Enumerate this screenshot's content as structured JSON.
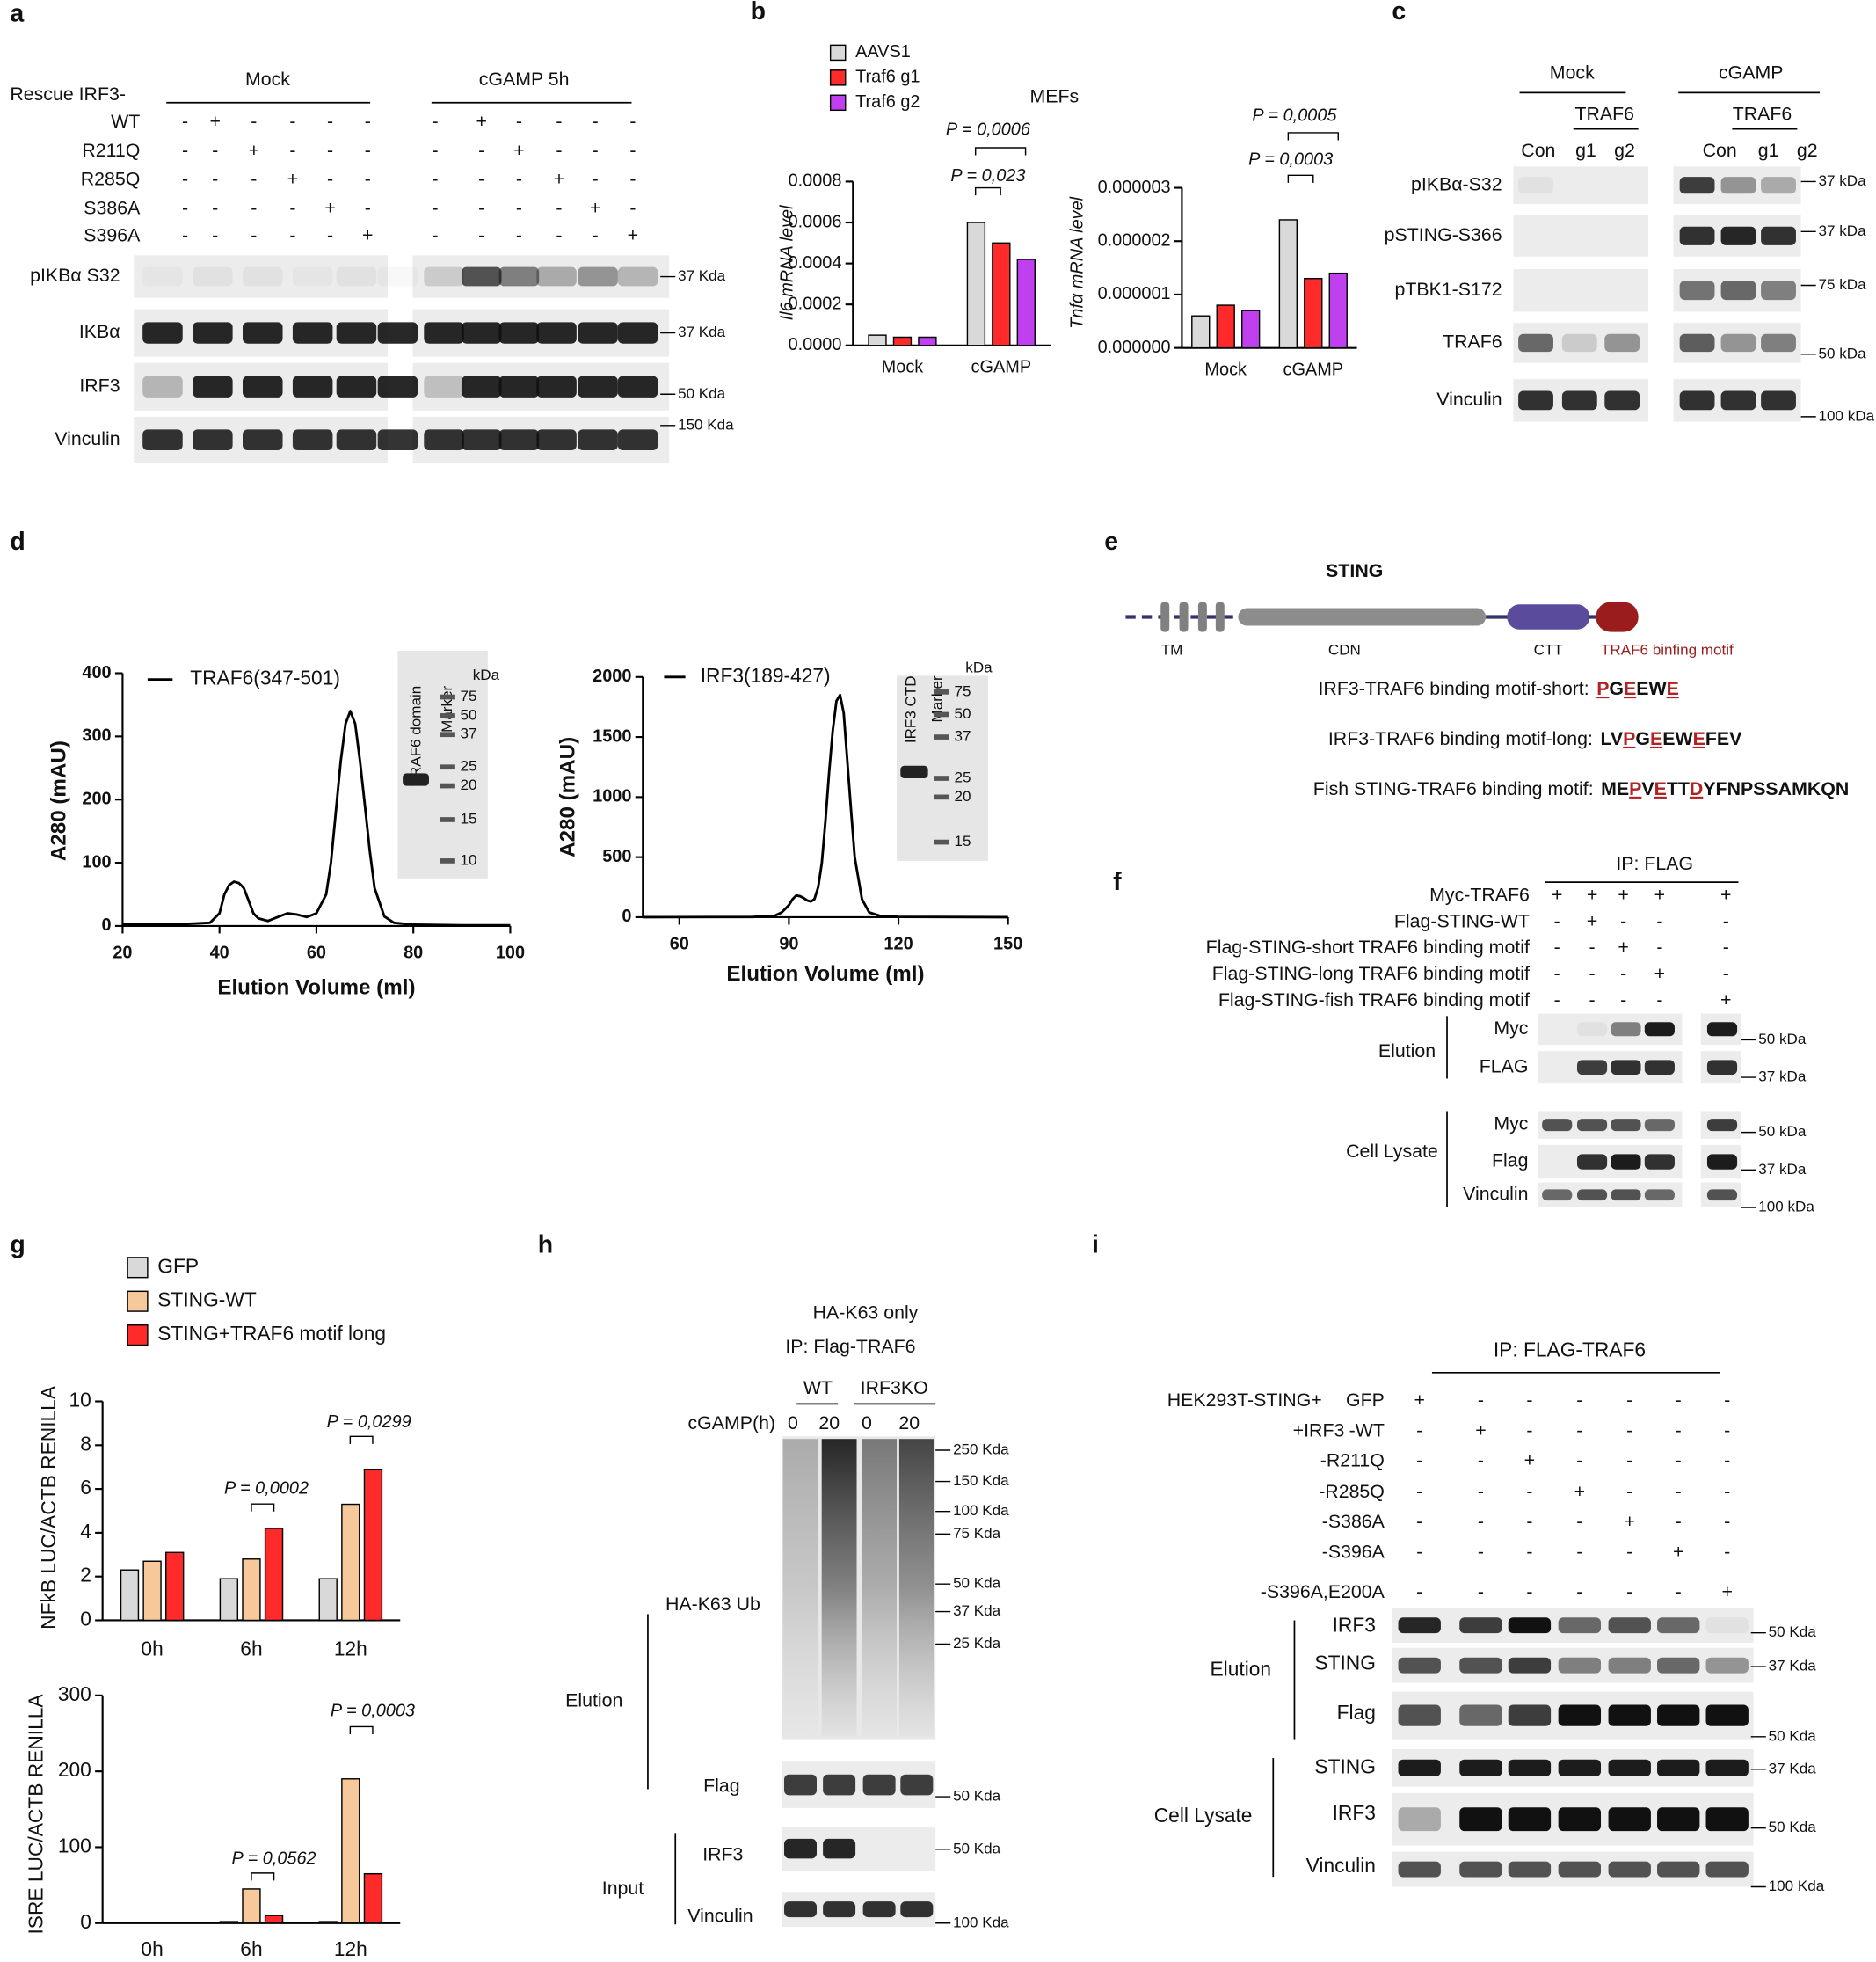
{
  "panel_labels": [
    "a",
    "b",
    "c",
    "d",
    "e",
    "f",
    "g",
    "h",
    "i"
  ],
  "panel_a": {
    "header": "Rescue IRF3-",
    "groups": [
      "Mock",
      "cGAMP 5h"
    ],
    "rows": [
      {
        "label": "WT",
        "signs": [
          "-",
          "+",
          "-",
          "-",
          "-",
          "-",
          "-",
          "+",
          "-",
          "-",
          "-",
          "-"
        ]
      },
      {
        "label": "R211Q",
        "signs": [
          "-",
          "-",
          "+",
          "-",
          "-",
          "-",
          "-",
          "-",
          "+",
          "-",
          "-",
          "-"
        ]
      },
      {
        "label": "R285Q",
        "signs": [
          "-",
          "-",
          "-",
          "+",
          "-",
          "-",
          "-",
          "-",
          "-",
          "+",
          "-",
          "-"
        ]
      },
      {
        "label": "S386A",
        "signs": [
          "-",
          "-",
          "-",
          "-",
          "+",
          "-",
          "-",
          "-",
          "-",
          "-",
          "+",
          "-"
        ]
      },
      {
        "label": "S396A",
        "signs": [
          "-",
          "-",
          "-",
          "-",
          "-",
          "+",
          "-",
          "-",
          "-",
          "-",
          "-",
          "+"
        ]
      }
    ],
    "blots": [
      {
        "label": "pIKBα S32",
        "marker": "37 Kda"
      },
      {
        "label": "IKBα",
        "marker": "37 Kda"
      },
      {
        "label": "IRF3",
        "marker": "50 Kda"
      },
      {
        "label": "Vinculin",
        "marker": "150 Kda"
      }
    ]
  },
  "panel_c": {
    "groups": [
      "Mock",
      "cGAMP"
    ],
    "subgroups": [
      "TRAF6",
      "TRAF6"
    ],
    "lanes": [
      "Con",
      "g1",
      "g2",
      "Con",
      "g1",
      "g2"
    ],
    "blots": [
      {
        "label": "pIKBα-S32",
        "marker": "37 kDa"
      },
      {
        "label": "pSTING-S366",
        "marker": "37 kDa"
      },
      {
        "label": "pTBK1-S172",
        "marker": "75 kDa"
      },
      {
        "label": "TRAF6",
        "marker": "50 kDa"
      },
      {
        "label": "Vinculin",
        "marker": "100 kDa"
      }
    ]
  },
  "panel_e": {
    "title": "STING",
    "domains": [
      "TM",
      "CDN",
      "CTT",
      "TRAF6 binfing motif"
    ],
    "motifs": [
      {
        "label": "IRF3-TRAF6 binding motif-short:",
        "sequence": [
          {
            "text": "P",
            "highlight": true
          },
          {
            "text": "G",
            "highlight": false
          },
          {
            "text": "E",
            "highlight": true
          },
          {
            "text": "EW",
            "highlight": false
          },
          {
            "text": "E",
            "highlight": true
          }
        ]
      },
      {
        "label": "IRF3-TRAF6 binding motif-long:",
        "sequence": [
          {
            "text": "LV",
            "highlight": false
          },
          {
            "text": "P",
            "highlight": true
          },
          {
            "text": "G",
            "highlight": false
          },
          {
            "text": "E",
            "highlight": true
          },
          {
            "text": "EW",
            "highlight": false
          },
          {
            "text": "E",
            "highlight": true
          },
          {
            "text": "FEV",
            "highlight": false
          }
        ]
      },
      {
        "label": "Fish STING-TRAF6 binding motif:",
        "sequence": [
          {
            "text": "ME",
            "highlight": false
          },
          {
            "text": "P",
            "highlight": true
          },
          {
            "text": "V",
            "highlight": false
          },
          {
            "text": "E",
            "highlight": true
          },
          {
            "text": "TT",
            "highlight": false
          },
          {
            "text": "D",
            "highlight": true
          },
          {
            "text": "YFNPSSAMKQN",
            "highlight": false
          }
        ]
      }
    ]
  },
  "panel_f": {
    "title": "IP: FLAG",
    "rows": [
      {
        "label": "Myc-TRAF6",
        "signs": [
          "+",
          "+",
          "+",
          "+",
          "+"
        ]
      },
      {
        "label": "Flag-STING-WT",
        "signs": [
          "-",
          "+",
          "-",
          "-",
          "-"
        ]
      },
      {
        "label": "Flag-STING-short TRAF6 binding motif",
        "signs": [
          "-",
          "-",
          "+",
          "-",
          "-"
        ]
      },
      {
        "label": "Flag-STING-long TRAF6 binding motif",
        "signs": [
          "-",
          "-",
          "-",
          "+",
          "-"
        ]
      },
      {
        "label": "Flag-STING-fish TRAF6 binding motif",
        "signs": [
          "-",
          "-",
          "-",
          "-",
          "+"
        ]
      }
    ],
    "sections": [
      {
        "label": "Elution",
        "blots": [
          {
            "label": "Myc",
            "marker": "50 kDa"
          },
          {
            "label": "FLAG",
            "marker": "37 kDa"
          }
        ]
      },
      {
        "label": "Cell Lysate",
        "blots": [
          {
            "label": "Myc",
            "marker": "50 kDa"
          },
          {
            "label": "Flag",
            "marker": "37 kDa"
          },
          {
            "label": "Vinculin",
            "marker": "100 kDa"
          }
        ]
      }
    ]
  },
  "panel_h": {
    "titles": [
      "HA-K63 only",
      "IP: Flag-TRAF6"
    ],
    "groups": [
      "WT",
      "IRF3KO"
    ],
    "lane_header": "cGAMP(h)",
    "lanes": [
      "0",
      "20",
      "0",
      "20"
    ],
    "sections": [
      {
        "label": "Elution",
        "blots": [
          {
            "label": "HA-K63 Ub",
            "markers": [
              "250 Kda",
              "150 Kda",
              "100 Kda",
              "75 Kda",
              "50 Kda",
              "37 Kda",
              "25 Kda"
            ]
          },
          {
            "label": "Flag",
            "markers": [
              "50 Kda"
            ]
          }
        ]
      },
      {
        "label": "Input",
        "blots": [
          {
            "label": "IRF3",
            "markers": [
              "50 Kda"
            ]
          },
          {
            "label": "Vinculin",
            "markers": [
              "100 Kda"
            ]
          }
        ]
      }
    ]
  },
  "panel_i": {
    "title": "IP: FLAG-TRAF6",
    "row_prefixes": [
      "HEK293T-STING+",
      "+IRF3"
    ],
    "rows": [
      {
        "label": "GFP",
        "signs": [
          "+",
          "-",
          "-",
          "-",
          "-",
          "-",
          "-"
        ]
      },
      {
        "label": "-WT",
        "signs": [
          "-",
          "+",
          "-",
          "-",
          "-",
          "-",
          "-"
        ]
      },
      {
        "label": "-R211Q",
        "signs": [
          "-",
          "-",
          "+",
          "-",
          "-",
          "-",
          "-"
        ]
      },
      {
        "label": "-R285Q",
        "signs": [
          "-",
          "-",
          "-",
          "+",
          "-",
          "-",
          "-"
        ]
      },
      {
        "label": "-S386A",
        "signs": [
          "-",
          "-",
          "-",
          "-",
          "+",
          "-",
          "-"
        ]
      },
      {
        "label": "-S396A",
        "signs": [
          "-",
          "-",
          "-",
          "-",
          "-",
          "+",
          "-"
        ]
      },
      {
        "label": "-S396A,E200A",
        "signs": [
          "-",
          "-",
          "-",
          "-",
          "-",
          "-",
          "+"
        ]
      }
    ],
    "sections": [
      {
        "label": "Elution",
        "blots": [
          {
            "label": "IRF3",
            "marker": "50 Kda"
          },
          {
            "label": "STING",
            "marker": "37 Kda"
          },
          {
            "label": "Flag",
            "marker": "50 Kda"
          }
        ]
      },
      {
        "label": "Cell Lysate",
        "blots": [
          {
            "label": "STING",
            "marker": "37 Kda"
          },
          {
            "label": "IRF3",
            "marker": "50 Kda"
          },
          {
            "label": "Vinculin",
            "marker": "100 Kda"
          }
        ]
      }
    ]
  },
  "chart_data": [
    {
      "type": "bar",
      "title": "MEFs",
      "y_label": "Il6 mRNA level",
      "categories": [
        "Mock",
        "cGAMP"
      ],
      "series": [
        {
          "name": "AAVS1",
          "color": "#d9d9d9",
          "values": [
            5e-05,
            0.0006
          ]
        },
        {
          "name": "Traf6 g1",
          "color": "#ff2b2b",
          "values": [
            4e-05,
            0.0005
          ]
        },
        {
          "name": "Traf6 g2",
          "color": "#c040f0",
          "values": [
            4e-05,
            0.00042
          ]
        }
      ],
      "ylim": [
        0,
        0.0008
      ],
      "yticks": [
        {
          "value": 0,
          "label": "0.0000"
        },
        {
          "value": 0.0002,
          "label": "0.0002"
        },
        {
          "value": 0.0004,
          "label": "0.0004"
        },
        {
          "value": 0.0006,
          "label": "0.0006"
        },
        {
          "value": 0.0008,
          "label": "0.0008"
        }
      ],
      "annotations": [
        "P = 0,023",
        "P = 0,0006"
      ]
    },
    {
      "type": "bar",
      "y_label": "Tnfα mRNA level",
      "categories": [
        "Mock",
        "cGAMP"
      ],
      "series": [
        {
          "color": "#d9d9d9",
          "values": [
            6e-07,
            2.4e-06
          ]
        },
        {
          "color": "#ff2b2b",
          "values": [
            8e-07,
            1.3e-06
          ]
        },
        {
          "color": "#c040f0",
          "values": [
            7e-07,
            1.4e-06
          ]
        }
      ],
      "ylim": [
        0,
        3e-06
      ],
      "yticks": [
        {
          "value": 0,
          "label": "0.000000"
        },
        {
          "value": 1e-06,
          "label": "0.000001"
        },
        {
          "value": 2e-06,
          "label": "0.000002"
        },
        {
          "value": 3e-06,
          "label": "0.000003"
        }
      ],
      "annotations": [
        "P = 0,0003",
        "P = 0,0005"
      ]
    },
    {
      "type": "line",
      "x_label": "Elution Volume (ml)",
      "y_label": "A280 (mAU)",
      "x": [
        20,
        30,
        38,
        40,
        41,
        42,
        43,
        44,
        45,
        46,
        47,
        48,
        50,
        52,
        54,
        56,
        58,
        60,
        62,
        63,
        64,
        65,
        66,
        67,
        68,
        69,
        70,
        71,
        72,
        74,
        76,
        80,
        90,
        100
      ],
      "series": [
        {
          "name": "TRAF6(347-501)",
          "color": "#000000",
          "values": [
            2,
            2,
            5,
            20,
            50,
            65,
            70,
            68,
            60,
            40,
            20,
            12,
            8,
            14,
            20,
            18,
            14,
            20,
            50,
            100,
            180,
            260,
            320,
            340,
            320,
            260,
            190,
            120,
            60,
            15,
            5,
            2,
            1,
            1
          ]
        }
      ],
      "xlim": [
        20,
        100
      ],
      "xticks": [
        20,
        40,
        60,
        80,
        100
      ],
      "ylim": [
        0,
        400
      ],
      "yticks": [
        0,
        100,
        200,
        300,
        400
      ],
      "gel": {
        "lanes": [
          "TRAF6 domain",
          "Marker"
        ],
        "unit": "kDa",
        "markers": [
          75,
          50,
          37,
          25,
          20,
          15,
          10
        ]
      }
    },
    {
      "type": "line",
      "x_label": "Elution Volume (ml)",
      "y_label": "A280 (mAU)",
      "x": [
        50,
        80,
        86,
        88,
        90,
        91,
        92,
        93,
        94,
        95,
        96,
        97,
        98,
        99,
        100,
        101,
        102,
        103,
        104,
        105,
        106,
        107,
        108,
        110,
        112,
        115,
        120,
        150
      ],
      "series": [
        {
          "name": "IRF3(189-427)",
          "color": "#000000",
          "values": [
            0,
            2,
            10,
            40,
            100,
            150,
            180,
            175,
            160,
            140,
            130,
            150,
            250,
            450,
            800,
            1200,
            1550,
            1800,
            1850,
            1700,
            1300,
            900,
            500,
            150,
            40,
            10,
            3,
            0
          ]
        }
      ],
      "xlim": [
        50,
        150
      ],
      "xticks": [
        60,
        90,
        120,
        150
      ],
      "ylim": [
        0,
        2000
      ],
      "yticks": [
        0,
        500,
        1000,
        1500,
        2000
      ],
      "gel": {
        "lanes": [
          "IRF3 CTD",
          "Marker"
        ],
        "unit": "kDa",
        "markers": [
          75,
          50,
          37,
          25,
          20,
          15
        ]
      }
    },
    {
      "type": "bar",
      "y_label": "NFkB LUC/ACTB RENILLA",
      "categories": [
        "0h",
        "6h",
        "12h"
      ],
      "series": [
        {
          "name": "GFP",
          "color": "#d9d9d9",
          "values": [
            2.3,
            1.9,
            1.9
          ]
        },
        {
          "name": "STING-WT",
          "color": "#f7c99a",
          "values": [
            2.7,
            2.8,
            5.3
          ]
        },
        {
          "name": "STING+TRAF6 motif long",
          "color": "#ff2b2b",
          "values": [
            3.1,
            4.2,
            6.9
          ]
        }
      ],
      "ylim": [
        0,
        10
      ],
      "yticks": [
        0,
        2,
        4,
        6,
        8,
        10
      ],
      "annotations": [
        "P = 0,0002",
        "P = 0,0299"
      ]
    },
    {
      "type": "bar",
      "y_label": "ISRE LUC/ACTB RENILLA",
      "categories": [
        "0h",
        "6h",
        "12h"
      ],
      "series": [
        {
          "color": "#d9d9d9",
          "values": [
            1,
            2,
            2
          ]
        },
        {
          "color": "#f7c99a",
          "values": [
            1,
            45,
            190
          ]
        },
        {
          "color": "#ff2b2b",
          "values": [
            1,
            10,
            65
          ]
        }
      ],
      "ylim": [
        0,
        300
      ],
      "yticks": [
        0,
        100,
        200,
        300
      ],
      "annotations": [
        "P = 0,0562",
        "P = 0,0003"
      ]
    }
  ]
}
